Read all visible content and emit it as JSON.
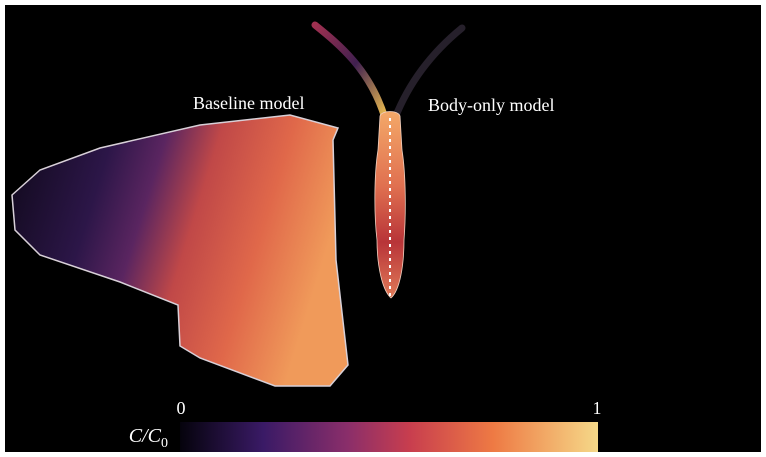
{
  "labels": {
    "baseline": "Baseline model",
    "body_only": "Body-only model"
  },
  "colorbar": {
    "label_main": "C/C",
    "label_subscript": "0",
    "ticks": [
      0,
      1
    ]
  }
}
